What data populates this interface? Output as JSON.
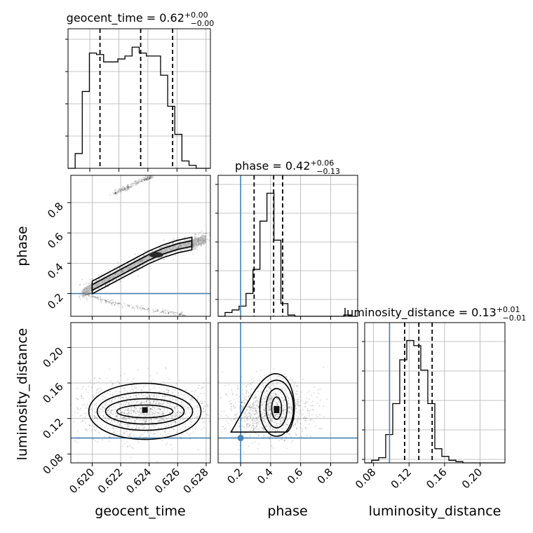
{
  "chart_data": {
    "type": "corner",
    "parameters": [
      "geocent_time",
      "phase",
      "luminosity_distance"
    ],
    "titles": [
      {
        "text": "geocent_time = 0.62",
        "plus": "+0.00",
        "minus": "−0.00"
      },
      {
        "text": "phase = 0.42",
        "plus": "+0.06",
        "minus": "−0.13"
      },
      {
        "text": "luminosity_distance = 0.13",
        "plus": "+0.01",
        "minus": "−0.01"
      }
    ],
    "axis_labels": {
      "geocent_time": "geocent_time",
      "phase": "phase",
      "luminosity_distance": "luminosity_distance"
    },
    "ranges": {
      "geocent_time": [
        0.6185,
        0.6283
      ],
      "phase": [
        0.05,
        0.98
      ],
      "luminosity_distance": [
        0.07,
        0.228
      ]
    },
    "ticks": {
      "geocent_time": [
        {
          "v": 0.62,
          "label": "0.620"
        },
        {
          "v": 0.622,
          "label": "0.622"
        },
        {
          "v": 0.624,
          "label": "0.624"
        },
        {
          "v": 0.626,
          "label": "0.626"
        },
        {
          "v": 0.628,
          "label": "0.628"
        }
      ],
      "phase": [
        {
          "v": 0.2,
          "label": "0.2"
        },
        {
          "v": 0.4,
          "label": "0.4"
        },
        {
          "v": 0.6,
          "label": "0.6"
        },
        {
          "v": 0.8,
          "label": "0.8"
        }
      ],
      "luminosity_distance": [
        {
          "v": 0.08,
          "label": "0.08"
        },
        {
          "v": 0.12,
          "label": "0.12"
        },
        {
          "v": 0.16,
          "label": "0.16"
        },
        {
          "v": 0.2,
          "label": "0.20"
        }
      ]
    },
    "truths": {
      "geocent_time": null,
      "phase": 0.2,
      "luminosity_distance": 0.098
    },
    "quantiles": {
      "geocent_time": [
        0.6207,
        0.6235,
        0.6257
      ],
      "phase": [
        0.29,
        0.42,
        0.48
      ],
      "luminosity_distance": [
        0.115,
        0.131,
        0.146
      ]
    },
    "histograms": {
      "geocent_time": {
        "edges_start": 0.6185,
        "bin_width": 0.00049,
        "counts": [
          0,
          10,
          52,
          78,
          77,
          72,
          72,
          74,
          76,
          82,
          78,
          76,
          76,
          63,
          42,
          23,
          5,
          2,
          0,
          0
        ]
      },
      "phase": {
        "edges_start": 0.05,
        "bin_width": 0.0465,
        "counts": [
          0,
          3,
          5,
          8,
          18,
          37,
          75,
          97,
          60,
          10,
          1,
          0,
          0,
          0,
          0,
          0,
          0,
          0,
          1,
          0
        ]
      },
      "luminosity_distance": {
        "edges_start": 0.07,
        "bin_width": 0.0079,
        "counts": [
          0,
          2,
          4,
          22,
          46,
          80,
          95,
          91,
          72,
          46,
          11,
          5,
          2,
          1,
          0,
          0,
          0,
          0,
          0,
          0
        ]
      }
    },
    "density_2d": {
      "phase_vs_geocent_time": {
        "ridge": [
          [
            0.6193,
            0.2
          ],
          [
            0.62,
            0.24
          ],
          [
            0.621,
            0.29
          ],
          [
            0.622,
            0.34
          ],
          [
            0.623,
            0.39
          ],
          [
            0.624,
            0.44
          ],
          [
            0.625,
            0.48
          ],
          [
            0.626,
            0.51
          ],
          [
            0.627,
            0.53
          ],
          [
            0.628,
            0.56
          ]
        ],
        "secondary_branches": [
          [
            [
              0.6195,
              0.2
            ],
            [
              0.621,
              0.15
            ],
            [
              0.623,
              0.11
            ],
            [
              0.625,
              0.08
            ],
            [
              0.6265,
              0.06
            ]
          ],
          [
            [
              0.6215,
              0.86
            ],
            [
              0.6225,
              0.9
            ],
            [
              0.6235,
              0.95
            ],
            [
              0.6242,
              0.97
            ]
          ]
        ]
      },
      "luminosity_distance_vs_geocent_time": {
        "center": [
          0.6237,
          0.128
        ]
      },
      "luminosity_distance_vs_phase": {
        "center": [
          0.44,
          0.13
        ]
      }
    },
    "grid": true,
    "truth_color": "#4682b4"
  }
}
